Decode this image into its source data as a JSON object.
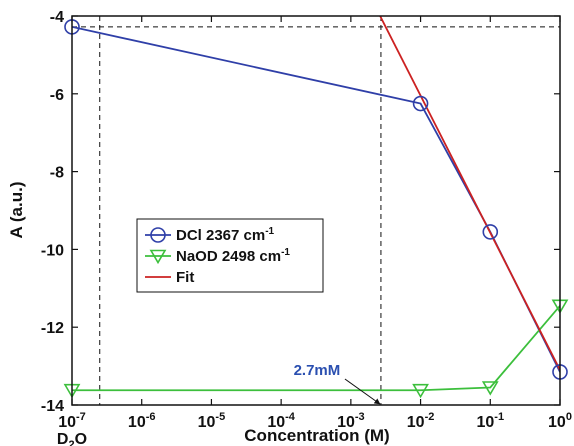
{
  "chart_data": {
    "type": "line",
    "xscale": "log",
    "xlim": [
      1e-07,
      1
    ],
    "ylim": [
      -14,
      -4
    ],
    "xlabel": "Concentration (M)",
    "ylabel": "A (a.u.)",
    "x_tick_labels": [
      {
        "value": 1e-07,
        "base": "10",
        "exp": "-7"
      },
      {
        "value": 1e-06,
        "base": "10",
        "exp": "-6"
      },
      {
        "value": 1e-05,
        "base": "10",
        "exp": "-5"
      },
      {
        "value": 0.0001,
        "base": "10",
        "exp": "-4"
      },
      {
        "value": 0.001,
        "base": "10",
        "exp": "-3"
      },
      {
        "value": 0.01,
        "base": "10",
        "exp": "-2"
      },
      {
        "value": 0.1,
        "base": "10",
        "exp": "-1"
      },
      {
        "value": 1,
        "base": "10",
        "exp": "0"
      }
    ],
    "x_extra_label": {
      "value": 1e-07,
      "main": "D",
      "sub": "2",
      "tail": "O"
    },
    "y_ticks": [
      -14,
      -12,
      -10,
      -8,
      -6,
      -4
    ],
    "y_tick_labels": [
      "-14",
      "-12",
      "-10",
      "-8",
      "-6",
      "-4"
    ],
    "series": [
      {
        "name": "DCl 2367 cm",
        "name_sup": "-1",
        "color": "#2f3fa8",
        "marker": "circle",
        "x": [
          1e-07,
          0.01,
          0.1,
          1
        ],
        "y": [
          -4.28,
          -6.25,
          -9.55,
          -13.15
        ]
      },
      {
        "name": "NaOD 2498 cm",
        "name_sup": "-1",
        "color": "#3cbf3c",
        "marker": "triangle-down",
        "x": [
          1e-07,
          0.01,
          0.1,
          1
        ],
        "y": [
          -13.62,
          -13.62,
          -13.55,
          -11.45
        ]
      },
      {
        "name": "Fit",
        "color": "#cc2222",
        "marker": "none",
        "x": [
          0.00263,
          1
        ],
        "y": [
          -4.0,
          -13.1
        ]
      }
    ],
    "reference_lines": {
      "horizontal_y": -4.28,
      "vertical_x": [
        2.5e-07,
        0.0027
      ]
    },
    "annotation": {
      "text": "2.7mM",
      "x": 0.0027,
      "y": -14,
      "color": "#2a4fb0"
    },
    "legend_position": "center-left",
    "grid": false
  }
}
